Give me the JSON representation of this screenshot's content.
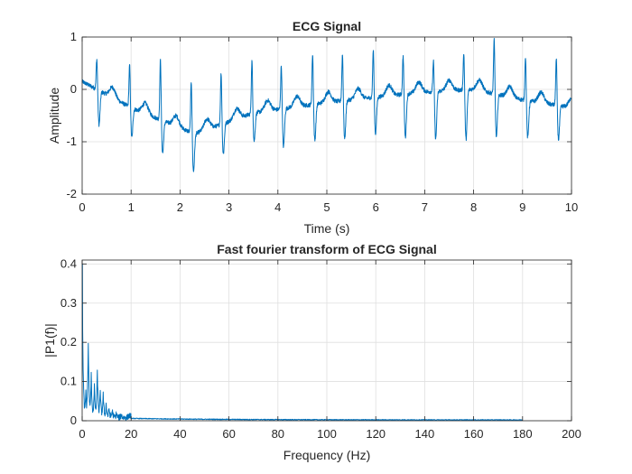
{
  "chart_data": [
    {
      "type": "line",
      "title": "ECG Signal",
      "xlabel": "Time (s)",
      "ylabel": "Amplitude",
      "xlim": [
        0,
        10
      ],
      "ylim": [
        -2,
        1
      ],
      "xticks": [
        "0",
        "1",
        "2",
        "3",
        "4",
        "5",
        "6",
        "7",
        "8",
        "9",
        "10"
      ],
      "yticks": [
        "-2",
        "-1",
        "0",
        "1"
      ],
      "grid": true,
      "line_color": "#0072BD",
      "beat_times": [
        0.3,
        0.97,
        1.6,
        2.23,
        2.84,
        3.47,
        4.07,
        4.71,
        5.32,
        5.95,
        6.56,
        7.18,
        7.8,
        8.42,
        9.06,
        9.69
      ],
      "beat_peaks": [
        0.62,
        0.5,
        0.6,
        0.2,
        0.35,
        0.58,
        0.5,
        0.72,
        0.72,
        0.8,
        0.7,
        0.6,
        0.75,
        1.0,
        0.68,
        0.62
      ],
      "beat_troughs": [
        -0.65,
        -0.9,
        -1.2,
        -1.55,
        -1.25,
        -1.0,
        -1.1,
        -0.98,
        -0.95,
        -0.85,
        -0.92,
        -0.95,
        -0.95,
        -0.9,
        -0.92,
        -0.95
      ],
      "baseline": [
        {
          "x": 0,
          "y": 0.15
        },
        {
          "x": 1.0,
          "y": -0.35
        },
        {
          "x": 2.3,
          "y": -0.85
        },
        {
          "x": 3.5,
          "y": -0.45
        },
        {
          "x": 5.0,
          "y": -0.25
        },
        {
          "x": 7.0,
          "y": -0.05
        },
        {
          "x": 8.0,
          "y": 0.0
        },
        {
          "x": 9.0,
          "y": -0.2
        },
        {
          "x": 10.0,
          "y": -0.35
        }
      ]
    },
    {
      "type": "line",
      "title": "Fast fourier transform of ECG Signal",
      "xlabel": "Frequency (Hz)",
      "ylabel": "|P1(f)|",
      "xlim": [
        0,
        200
      ],
      "ylim": [
        0,
        0.41
      ],
      "xticks": [
        "0",
        "20",
        "40",
        "60",
        "80",
        "100",
        "120",
        "140",
        "160",
        "180",
        "200"
      ],
      "yticks": [
        "0",
        "0.1",
        "0.2",
        "0.3",
        "0.4"
      ],
      "grid": true,
      "line_color": "#0072BD",
      "x_end": 180,
      "peaks": [
        {
          "x": 0,
          "y": 0.4
        },
        {
          "x": 1.5,
          "y": 0.07
        },
        {
          "x": 2.5,
          "y": 0.19
        },
        {
          "x": 3.7,
          "y": 0.11
        },
        {
          "x": 5.0,
          "y": 0.08
        },
        {
          "x": 6.2,
          "y": 0.118
        },
        {
          "x": 7.4,
          "y": 0.07
        },
        {
          "x": 8.6,
          "y": 0.06
        },
        {
          "x": 9.8,
          "y": 0.035
        },
        {
          "x": 11.0,
          "y": 0.025
        },
        {
          "x": 12.3,
          "y": 0.02
        },
        {
          "x": 14.0,
          "y": 0.012
        },
        {
          "x": 16.0,
          "y": 0.008
        },
        {
          "x": 19.0,
          "y": 0.006
        }
      ]
    }
  ]
}
